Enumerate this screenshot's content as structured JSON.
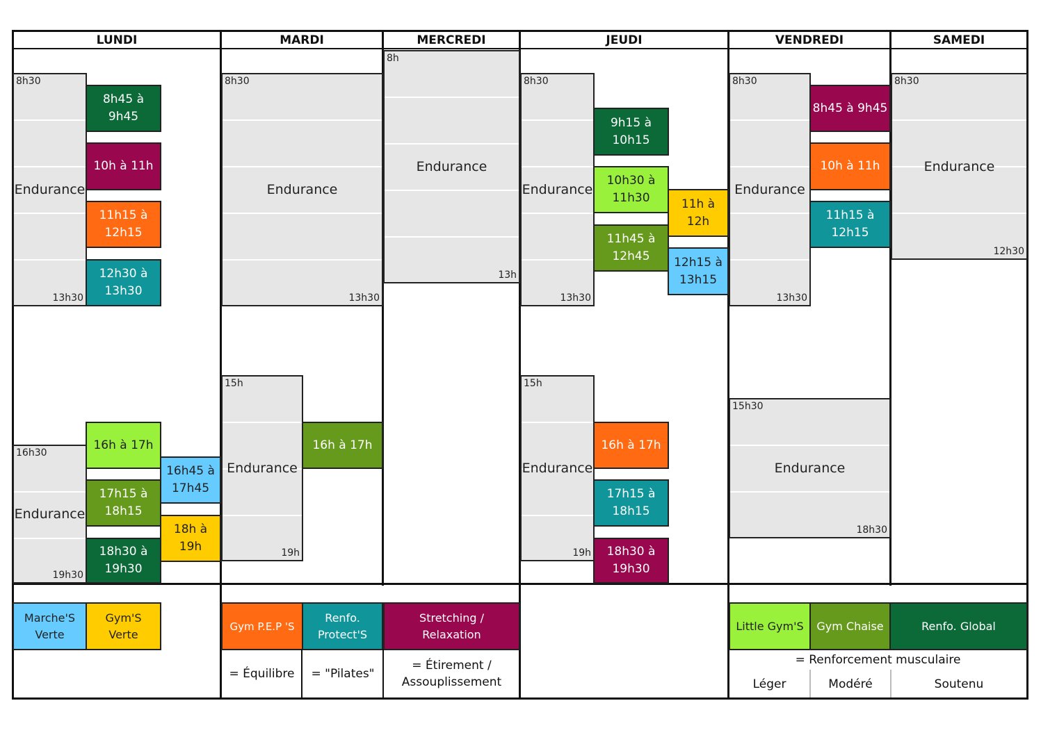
{
  "days": [
    "LUNDI",
    "MARDI",
    "MERCREDI",
    "JEUDI",
    "VENDREDI",
    "SAMEDI"
  ],
  "colors": {
    "marche_verte": "#66ccff",
    "gym_verte": "#ffcc00",
    "gym_peps": "#ff6a13",
    "renfo_protect": "#10969a",
    "stretching": "#99084f",
    "little_gym": "#99f13b",
    "gym_chaise": "#669a1c",
    "renfo_global": "#0b6a38",
    "endurance": "#e6e6e6"
  },
  "endurance_label": "Endurance",
  "endurance": {
    "lundi_am": {
      "start": "8h30",
      "end": "13h30"
    },
    "lundi_pm": {
      "start": "16h30",
      "end": "19h30"
    },
    "mardi_am": {
      "start": "8h30",
      "end": "13h30"
    },
    "mardi_pm": {
      "start": "15h",
      "end": "19h"
    },
    "mercredi_am": {
      "start": "8h",
      "end": "13h"
    },
    "jeudi_am": {
      "start": "8h30",
      "end": "13h30"
    },
    "jeudi_pm": {
      "start": "15h",
      "end": "19h"
    },
    "vendredi_am": {
      "start": "8h30",
      "end": "13h30"
    },
    "vendredi_pm": {
      "start": "15h30",
      "end": "18h30"
    },
    "samedi_am": {
      "start": "8h30",
      "end": "12h30"
    }
  },
  "sessions": {
    "lundi": [
      "8h45 à\n9h45",
      "10h à 11h",
      "11h15 à\n12h15",
      "12h30 à\n13h30",
      "16h à 17h",
      "16h45 à\n17h45",
      "17h15 à\n18h15",
      "18h à\n19h",
      "18h30 à\n19h30"
    ],
    "mardi": [
      "16h à 17h"
    ],
    "jeudi": [
      "9h15 à\n10h15",
      "10h30 à\n11h30",
      "11h à\n12h",
      "11h45 à\n12h45",
      "12h15 à\n13h15",
      "16h à 17h",
      "17h15 à\n18h15",
      "18h30 à\n19h30"
    ],
    "vendredi": [
      "8h45 à 9h45",
      "10h à 11h",
      "11h15 à\n12h15"
    ]
  },
  "legend": {
    "marche_verte": "Marche'S\nVerte",
    "gym_verte": "Gym'S\nVerte",
    "gym_peps": "Gym P.E.P 'S",
    "renfo_protect": "Renfo.\nProtect'S",
    "stretching": "Stretching /\nRelaxation",
    "equilibre": "= Équilibre",
    "pilates": "= \"Pilates\"",
    "etirement": "= Étirement /\nAssouplissement",
    "little_gym": "Little Gym'S",
    "gym_chaise": "Gym Chaise",
    "renfo_global": "Renfo. Global",
    "renforcement": "= Renforcement musculaire",
    "leger": "Léger",
    "modere": "Modéré",
    "soutenu": "Soutenu"
  }
}
